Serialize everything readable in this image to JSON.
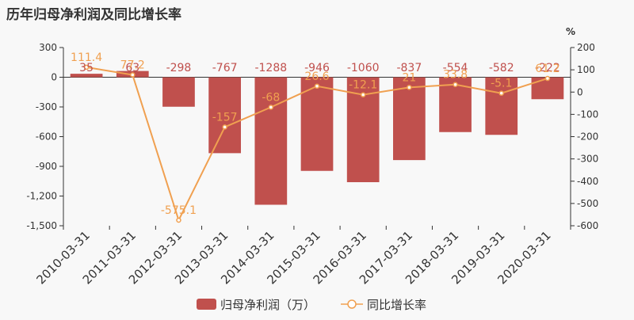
{
  "chart_data": {
    "type": "bar",
    "title": "历年归母净利润及同比增长率",
    "categories": [
      "2010-03-31",
      "2011-03-31",
      "2012-03-31",
      "2013-03-31",
      "2014-03-31",
      "2015-03-31",
      "2016-03-31",
      "2017-03-31",
      "2018-03-31",
      "2019-03-31",
      "2020-03-31"
    ],
    "left_axis": {
      "min": -1500,
      "max": 300,
      "ticks": [
        "300",
        "0",
        "-300",
        "-600",
        "-900",
        "-1,200",
        "-1,500"
      ]
    },
    "right_axis": {
      "unit": "%",
      "min": -600,
      "max": 200,
      "ticks": [
        "200",
        "100",
        "0",
        "-100",
        "-200",
        "-300",
        "-400",
        "-500",
        "-600"
      ]
    },
    "series": [
      {
        "name": "归母净利润（万）",
        "type": "bar",
        "axis": "left",
        "color": "#c0504d",
        "values": [
          35,
          63,
          -298,
          -767,
          -1288,
          -946,
          -1060,
          -837,
          -554,
          -582,
          -222
        ],
        "labels": [
          "35",
          "63",
          "-298",
          "-767",
          "-1288",
          "-946",
          "-1060",
          "-837",
          "-554",
          "-582",
          "-222"
        ]
      },
      {
        "name": "同比增长率",
        "type": "line",
        "axis": "right",
        "color": "#f0a050",
        "values": [
          111.4,
          77.2,
          -575.1,
          -157,
          -68,
          26.6,
          -12.1,
          21,
          33.8,
          -5.1,
          61.2
        ],
        "labels": [
          "111.4",
          "77.2",
          "-575.1",
          "-157",
          "-68",
          "26.6",
          "-12.1",
          "21",
          "33.8",
          "-5.1",
          "61.2"
        ]
      }
    ],
    "legend_position": "bottom-center",
    "grid": false
  }
}
